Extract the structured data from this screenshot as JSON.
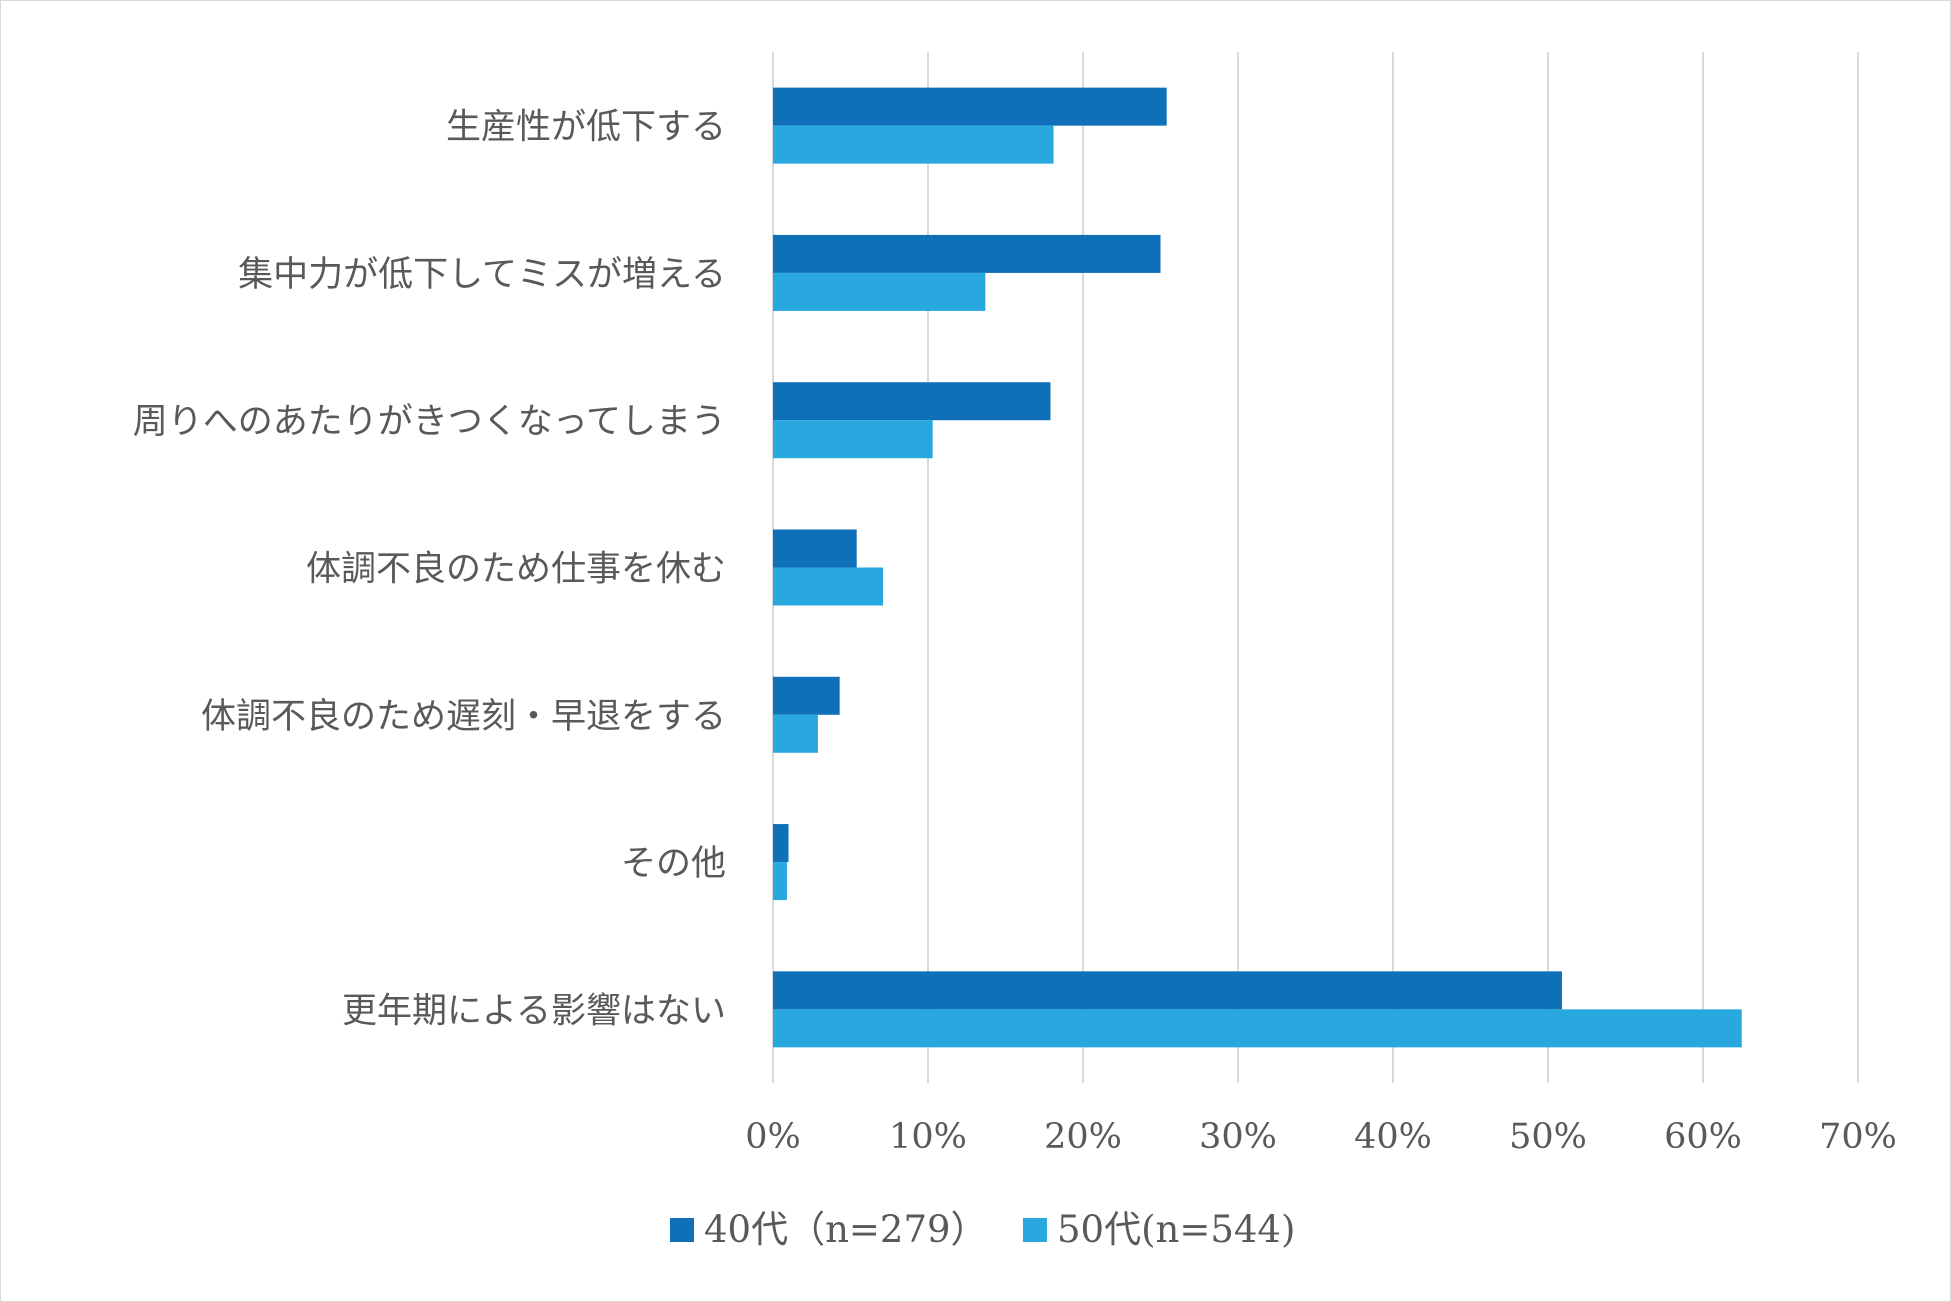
{
  "chart_data": {
    "type": "bar",
    "orientation": "horizontal",
    "title": "",
    "categories": [
      "生産性が低下する",
      "集中力が低下してミスが増える",
      "周りへのあたりがきつくなってしまう",
      "体調不良のため仕事を休む",
      "体調不良のため遅刻・早退をする",
      "その他",
      "更年期による影響はない"
    ],
    "series": [
      {
        "name": "40代（n=279）",
        "color": "#0F6FB9",
        "values": [
          25.4,
          25.0,
          17.9,
          5.4,
          4.3,
          1.0,
          50.9
        ]
      },
      {
        "name": "50代(n=544)",
        "color": "#29A8E0",
        "values": [
          18.1,
          13.7,
          10.3,
          7.1,
          2.9,
          0.9,
          62.5
        ]
      }
    ],
    "xlim": [
      0,
      70
    ],
    "xticks": [
      "0%",
      "10%",
      "20%",
      "30%",
      "40%",
      "50%",
      "60%",
      "70%"
    ],
    "grid": true,
    "legend": "bottom",
    "xlabel": "",
    "ylabel": ""
  }
}
